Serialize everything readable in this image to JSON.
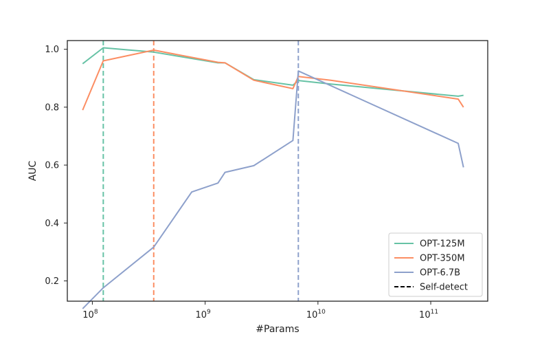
{
  "chart_data": {
    "type": "line",
    "title": "",
    "xlabel": "#Params",
    "ylabel": "AUC",
    "xscale": "log",
    "xlim": [
      60000000,
      320000000000
    ],
    "ylim": [
      0.13,
      1.03
    ],
    "x_ticks": [
      {
        "value": 100000000,
        "base": "10",
        "exp": "8"
      },
      {
        "value": 1000000000,
        "base": "10",
        "exp": "9"
      },
      {
        "value": 10000000000,
        "base": "10",
        "exp": "10"
      },
      {
        "value": 100000000000,
        "base": "10",
        "exp": "11"
      }
    ],
    "y_ticks": [
      {
        "value": 0.2,
        "label": "0.2"
      },
      {
        "value": 0.4,
        "label": "0.4"
      },
      {
        "value": 0.6,
        "label": "0.6"
      },
      {
        "value": 0.8,
        "label": "0.8"
      },
      {
        "value": 1.0,
        "label": "1.0"
      }
    ],
    "grid": false,
    "legend_position": "bottom-right",
    "series": [
      {
        "name": "OPT-125M",
        "color": "#66c2a5",
        "self_detect_x": 125000000,
        "x": [
          82000000,
          125000000,
          350000000,
          1300000000,
          1500000000,
          2700000000,
          6000000000,
          6700000000,
          13000000000,
          175000000000,
          195000000000
        ],
        "y": [
          0.95,
          1.005,
          0.99,
          0.953,
          0.953,
          0.895,
          0.876,
          0.892,
          0.88,
          0.838,
          0.841
        ]
      },
      {
        "name": "OPT-350M",
        "color": "#fc8d62",
        "self_detect_x": 350000000,
        "x": [
          82000000,
          125000000,
          350000000,
          1300000000,
          1500000000,
          2700000000,
          6000000000,
          6700000000,
          13000000000,
          175000000000,
          195000000000
        ],
        "y": [
          0.79,
          0.96,
          0.997,
          0.955,
          0.953,
          0.893,
          0.864,
          0.906,
          0.893,
          0.828,
          0.8
        ]
      },
      {
        "name": "OPT-6.7B",
        "color": "#8da0cb",
        "self_detect_x": 6700000000,
        "x": [
          82000000,
          125000000,
          350000000,
          760000000,
          1300000000,
          1500000000,
          2700000000,
          6000000000,
          6700000000,
          175000000000,
          195000000000
        ],
        "y": [
          0.104,
          0.176,
          0.317,
          0.507,
          0.538,
          0.575,
          0.598,
          0.685,
          0.925,
          0.675,
          0.592
        ]
      }
    ],
    "legend_extra": {
      "label": "Self-detect",
      "style": "dashed",
      "color": "#000000"
    }
  }
}
